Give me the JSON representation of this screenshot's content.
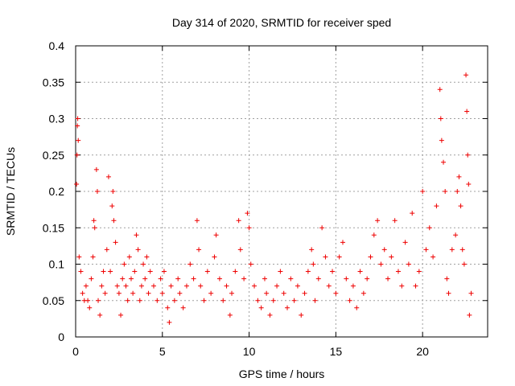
{
  "chart_data": {
    "type": "scatter",
    "title": "Day 314 of 2020, SRMTID for receiver sped",
    "xlabel": "GPS time / hours",
    "ylabel": "SRMTID / TECUs",
    "xlim": [
      0,
      23.75
    ],
    "ylim": [
      0,
      0.4
    ],
    "xticks": [
      0,
      5,
      10,
      15,
      20
    ],
    "xtick_labels": [
      "0",
      "5",
      "10",
      "15",
      "20"
    ],
    "yticks": [
      0,
      0.05,
      0.1,
      0.15,
      0.2,
      0.25,
      0.3,
      0.35,
      0.4
    ],
    "ytick_labels": [
      "0",
      "0.05",
      "0.1",
      "0.15",
      "0.2",
      "0.25",
      "0.3",
      "0.35",
      "0.4"
    ],
    "grid": true,
    "marker": "+",
    "color": "#ee0000",
    "series": [
      {
        "name": "SRMTID",
        "points": [
          [
            0.05,
            0.21
          ],
          [
            0.08,
            0.25
          ],
          [
            0.1,
            0.29
          ],
          [
            0.12,
            0.3
          ],
          [
            0.15,
            0.27
          ],
          [
            0.2,
            0.11
          ],
          [
            0.3,
            0.09
          ],
          [
            0.4,
            0.06
          ],
          [
            0.5,
            0.05
          ],
          [
            0.6,
            0.07
          ],
          [
            0.7,
            0.05
          ],
          [
            0.8,
            0.04
          ],
          [
            0.9,
            0.08
          ],
          [
            1.0,
            0.11
          ],
          [
            1.05,
            0.16
          ],
          [
            1.1,
            0.15
          ],
          [
            1.2,
            0.23
          ],
          [
            1.25,
            0.2
          ],
          [
            1.3,
            0.05
          ],
          [
            1.4,
            0.03
          ],
          [
            1.5,
            0.07
          ],
          [
            1.6,
            0.09
          ],
          [
            1.7,
            0.06
          ],
          [
            1.8,
            0.12
          ],
          [
            1.9,
            0.22
          ],
          [
            2.0,
            0.09
          ],
          [
            2.1,
            0.18
          ],
          [
            2.15,
            0.2
          ],
          [
            2.2,
            0.16
          ],
          [
            2.3,
            0.13
          ],
          [
            2.4,
            0.07
          ],
          [
            2.5,
            0.06
          ],
          [
            2.6,
            0.03
          ],
          [
            2.7,
            0.08
          ],
          [
            2.8,
            0.1
          ],
          [
            2.9,
            0.07
          ],
          [
            3.0,
            0.05
          ],
          [
            3.1,
            0.11
          ],
          [
            3.2,
            0.08
          ],
          [
            3.3,
            0.06
          ],
          [
            3.4,
            0.09
          ],
          [
            3.5,
            0.14
          ],
          [
            3.6,
            0.12
          ],
          [
            3.7,
            0.05
          ],
          [
            3.8,
            0.07
          ],
          [
            3.9,
            0.1
          ],
          [
            4.0,
            0.08
          ],
          [
            4.1,
            0.11
          ],
          [
            4.2,
            0.06
          ],
          [
            4.3,
            0.09
          ],
          [
            4.5,
            0.07
          ],
          [
            4.7,
            0.05
          ],
          [
            4.9,
            0.08
          ],
          [
            5.0,
            0.06
          ],
          [
            5.1,
            0.09
          ],
          [
            5.3,
            0.04
          ],
          [
            5.4,
            0.02
          ],
          [
            5.5,
            0.07
          ],
          [
            5.7,
            0.05
          ],
          [
            5.9,
            0.08
          ],
          [
            6.0,
            0.06
          ],
          [
            6.2,
            0.04
          ],
          [
            6.4,
            0.07
          ],
          [
            6.6,
            0.1
          ],
          [
            6.8,
            0.08
          ],
          [
            7.0,
            0.16
          ],
          [
            7.1,
            0.12
          ],
          [
            7.2,
            0.07
          ],
          [
            7.4,
            0.05
          ],
          [
            7.6,
            0.09
          ],
          [
            7.8,
            0.06
          ],
          [
            8.0,
            0.11
          ],
          [
            8.1,
            0.14
          ],
          [
            8.3,
            0.08
          ],
          [
            8.5,
            0.05
          ],
          [
            8.7,
            0.07
          ],
          [
            8.9,
            0.03
          ],
          [
            9.0,
            0.06
          ],
          [
            9.2,
            0.09
          ],
          [
            9.4,
            0.16
          ],
          [
            9.5,
            0.12
          ],
          [
            9.7,
            0.08
          ],
          [
            9.9,
            0.17
          ],
          [
            10.0,
            0.15
          ],
          [
            10.1,
            0.1
          ],
          [
            10.3,
            0.07
          ],
          [
            10.5,
            0.05
          ],
          [
            10.7,
            0.04
          ],
          [
            10.9,
            0.08
          ],
          [
            11.0,
            0.06
          ],
          [
            11.2,
            0.03
          ],
          [
            11.4,
            0.05
          ],
          [
            11.6,
            0.07
          ],
          [
            11.8,
            0.09
          ],
          [
            12.0,
            0.06
          ],
          [
            12.2,
            0.04
          ],
          [
            12.4,
            0.08
          ],
          [
            12.6,
            0.05
          ],
          [
            12.8,
            0.07
          ],
          [
            13.0,
            0.03
          ],
          [
            13.2,
            0.06
          ],
          [
            13.4,
            0.09
          ],
          [
            13.6,
            0.12
          ],
          [
            13.7,
            0.1
          ],
          [
            13.8,
            0.05
          ],
          [
            14.0,
            0.08
          ],
          [
            14.2,
            0.15
          ],
          [
            14.4,
            0.11
          ],
          [
            14.6,
            0.07
          ],
          [
            14.8,
            0.09
          ],
          [
            15.0,
            0.06
          ],
          [
            15.2,
            0.11
          ],
          [
            15.4,
            0.13
          ],
          [
            15.6,
            0.08
          ],
          [
            15.8,
            0.05
          ],
          [
            16.0,
            0.07
          ],
          [
            16.2,
            0.04
          ],
          [
            16.4,
            0.09
          ],
          [
            16.6,
            0.06
          ],
          [
            16.8,
            0.08
          ],
          [
            17.0,
            0.11
          ],
          [
            17.2,
            0.14
          ],
          [
            17.4,
            0.16
          ],
          [
            17.6,
            0.1
          ],
          [
            17.8,
            0.12
          ],
          [
            18.0,
            0.08
          ],
          [
            18.2,
            0.11
          ],
          [
            18.4,
            0.16
          ],
          [
            18.6,
            0.09
          ],
          [
            18.8,
            0.07
          ],
          [
            19.0,
            0.13
          ],
          [
            19.2,
            0.1
          ],
          [
            19.4,
            0.17
          ],
          [
            19.6,
            0.07
          ],
          [
            19.8,
            0.09
          ],
          [
            20.0,
            0.2
          ],
          [
            20.2,
            0.12
          ],
          [
            20.4,
            0.15
          ],
          [
            20.6,
            0.11
          ],
          [
            20.8,
            0.18
          ],
          [
            21.0,
            0.34
          ],
          [
            21.05,
            0.3
          ],
          [
            21.1,
            0.27
          ],
          [
            21.2,
            0.24
          ],
          [
            21.3,
            0.2
          ],
          [
            21.4,
            0.08
          ],
          [
            21.5,
            0.06
          ],
          [
            21.7,
            0.12
          ],
          [
            21.9,
            0.14
          ],
          [
            22.0,
            0.2
          ],
          [
            22.1,
            0.22
          ],
          [
            22.2,
            0.18
          ],
          [
            22.3,
            0.12
          ],
          [
            22.4,
            0.1
          ],
          [
            22.5,
            0.36
          ],
          [
            22.55,
            0.31
          ],
          [
            22.6,
            0.25
          ],
          [
            22.65,
            0.21
          ],
          [
            22.7,
            0.03
          ],
          [
            22.8,
            0.06
          ]
        ]
      }
    ]
  }
}
